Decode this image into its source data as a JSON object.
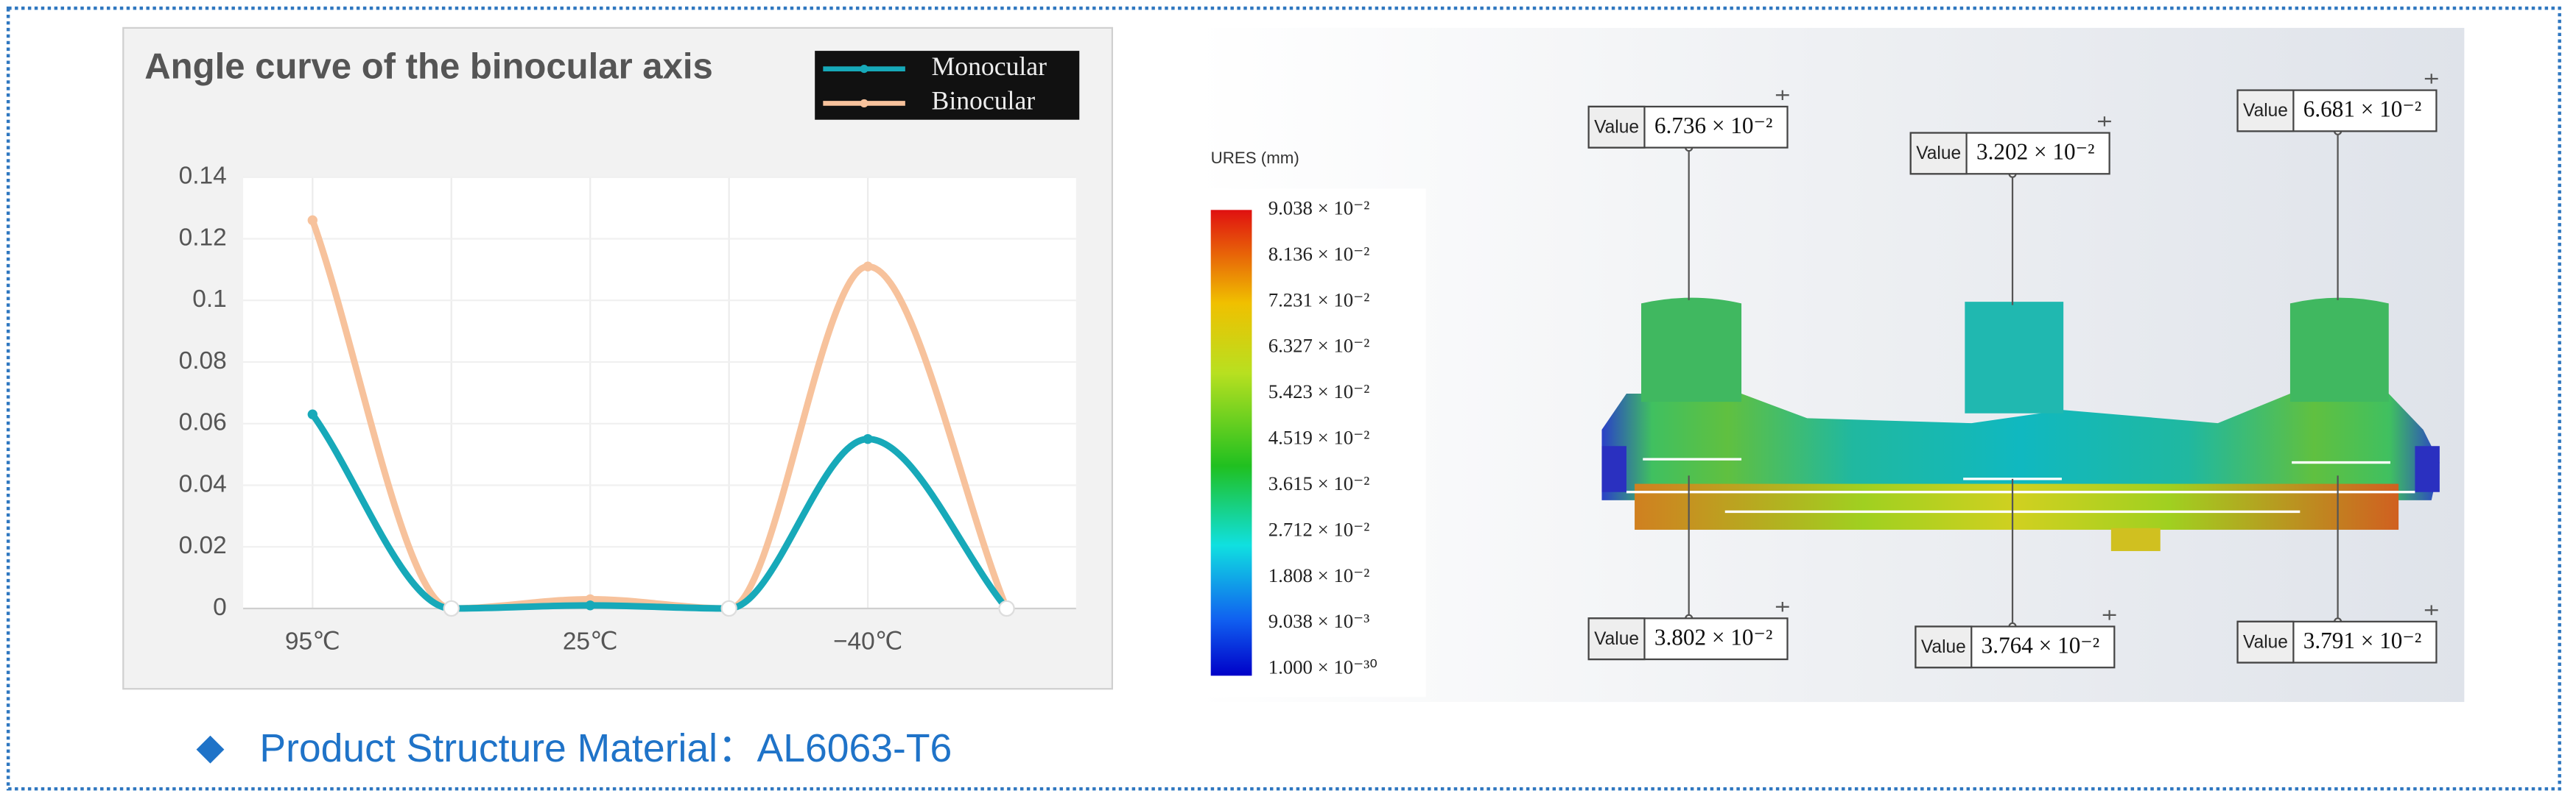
{
  "chart_data": {
    "type": "line",
    "title": "Angle curve of the binocular axis",
    "categories": [
      "95℃",
      null,
      "25℃",
      null,
      "−40℃",
      null
    ],
    "series": [
      {
        "name": "Monocular",
        "color": "#17a9b9",
        "values": [
          0.063,
          0,
          0.001,
          0,
          0.055,
          0
        ]
      },
      {
        "name": "Binocular",
        "color": "#f7c29c",
        "values": [
          0.126,
          0,
          0.003,
          0,
          0.111,
          0
        ]
      }
    ],
    "ylim": [
      0,
      0.14
    ],
    "yticks": [
      0,
      0.02,
      0.04,
      0.06,
      0.08,
      0.1,
      0.12,
      0.14
    ],
    "grid": true,
    "legend": "top-right"
  },
  "simulation": {
    "colorbar_title": "URES (mm)",
    "colorbar_labels": [
      "9.038 × 10⁻²",
      "8.136 × 10⁻²",
      "7.231 × 10⁻²",
      "6.327 × 10⁻²",
      "5.423 × 10⁻²",
      "4.519 × 10⁻²",
      "3.615 × 10⁻²",
      "2.712 × 10⁻²",
      "1.808 × 10⁻²",
      "9.038 × 10⁻³",
      "1.000 × 10⁻³⁰"
    ],
    "probes": [
      {
        "label": "Value",
        "value": "6.736 × 10⁻²"
      },
      {
        "label": "Value",
        "value": "3.202 × 10⁻²"
      },
      {
        "label": "Value",
        "value": "6.681 × 10⁻²"
      },
      {
        "label": "Value",
        "value": "3.802 × 10⁻²"
      },
      {
        "label": "Value",
        "value": "3.764 × 10⁻²"
      },
      {
        "label": "Value",
        "value": "3.791 × 10⁻²"
      }
    ]
  },
  "caption": {
    "text": "Product Structure Material：AL6063-T6"
  }
}
